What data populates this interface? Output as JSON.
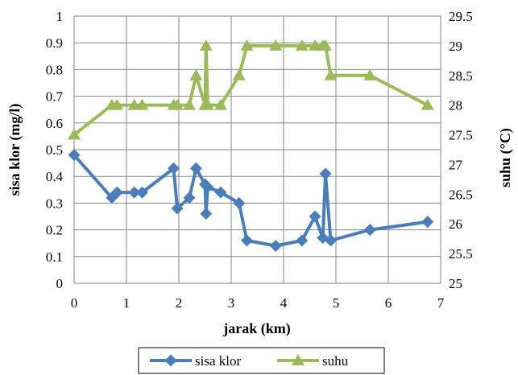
{
  "chart_data": {
    "type": "line",
    "title": "",
    "xlabel": "jarak (km)",
    "ylabel_left": "sisa klor (mg/l)",
    "ylabel_right": "suhu (°C)",
    "xlim": [
      0,
      7
    ],
    "xticks": [
      "0",
      "1",
      "2",
      "3",
      "4",
      "5",
      "6",
      "7"
    ],
    "ylim_left": [
      0,
      1
    ],
    "yticks_left": [
      "0",
      "0.1",
      "0.2",
      "0.3",
      "0.4",
      "0.5",
      "0.6",
      "0.7",
      "0.8",
      "0.9",
      "1"
    ],
    "ylim_right": [
      25,
      29.5
    ],
    "yticks_right": [
      "25",
      "25.5",
      "26",
      "26.5",
      "27",
      "27.5",
      "28",
      "28.5",
      "29",
      "29.5"
    ],
    "grid": true,
    "legend_position": "bottom",
    "series": [
      {
        "name": "sisa klor",
        "axis": "left",
        "color": "#4a7ebb",
        "marker": "diamond",
        "x": [
          0,
          0.72,
          0.82,
          1.15,
          1.3,
          1.9,
          1.97,
          2.2,
          2.33,
          2.5,
          2.52,
          2.55,
          2.8,
          3.15,
          3.3,
          3.85,
          4.35,
          4.6,
          4.75,
          4.8,
          4.9,
          5.65,
          6.75
        ],
        "y": [
          0.48,
          0.32,
          0.34,
          0.34,
          0.34,
          0.43,
          0.28,
          0.32,
          0.43,
          0.37,
          0.26,
          0.36,
          0.34,
          0.3,
          0.16,
          0.14,
          0.16,
          0.25,
          0.17,
          0.41,
          0.16,
          0.2,
          0.23
        ]
      },
      {
        "name": "suhu",
        "axis": "right",
        "color": "#9bbb59",
        "marker": "triangle",
        "x": [
          0,
          0.72,
          0.82,
          1.15,
          1.3,
          1.9,
          1.97,
          2.2,
          2.33,
          2.5,
          2.52,
          2.55,
          2.8,
          3.15,
          3.3,
          3.85,
          4.35,
          4.6,
          4.75,
          4.8,
          4.9,
          5.65,
          6.75
        ],
        "y": [
          27.5,
          28,
          28,
          28,
          28,
          28,
          28,
          28,
          28.5,
          28,
          29,
          28,
          28,
          28.5,
          29,
          29,
          29,
          29,
          29,
          29,
          28.5,
          28.5,
          28
        ]
      }
    ]
  }
}
